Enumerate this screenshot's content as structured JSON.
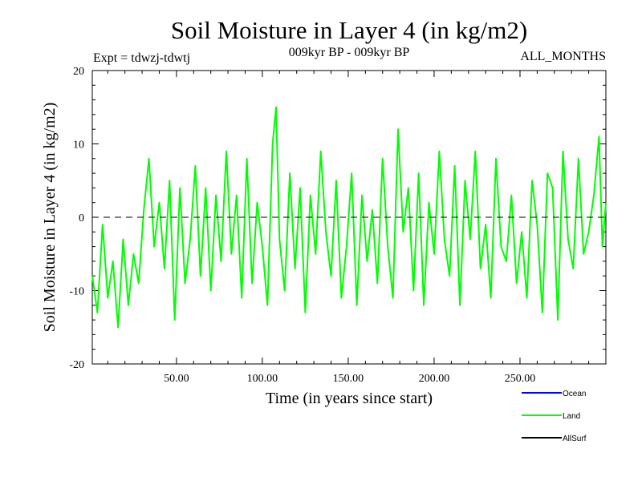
{
  "header": {
    "title": "Soil Moisture in Layer 4 (in kg/m2)",
    "expt": "Expt = tdwzj-tdwtj",
    "period": "009kyr BP - 009kyr BP",
    "months": "ALL_MONTHS"
  },
  "chart_data": {
    "type": "line",
    "title": "Soil Moisture in Layer 4 (in kg/m2)",
    "xlabel": "Time (in years since start)",
    "ylabel": "Soil Moisture in Layer 4 (in kg/m2)",
    "xlim": [
      1,
      300
    ],
    "ylim": [
      -20,
      20
    ],
    "xticks": [
      50,
      100,
      150,
      200,
      250
    ],
    "xtick_labels": [
      "50.00",
      "100.00",
      "150.00",
      "200.00",
      "250.00"
    ],
    "yticks": [
      -20,
      -10,
      0,
      10,
      20
    ],
    "ytick_labels": [
      "-20",
      "-10",
      "0",
      "10",
      "20"
    ],
    "reference_line": {
      "y": 0,
      "style": "dashed",
      "color": "#000000"
    },
    "legend": {
      "placement": "bottom-right",
      "entries": [
        {
          "name": "Ocean",
          "color": "#0000ff"
        },
        {
          "name": "Land",
          "color": "#00ff00"
        },
        {
          "name": "AllSurf",
          "color": "#000000"
        }
      ]
    },
    "series": [
      {
        "name": "Land",
        "color": "#00ff00",
        "x": [
          1,
          4,
          7,
          10,
          13,
          16,
          19,
          22,
          25,
          28,
          31,
          34,
          37,
          40,
          43,
          46,
          49,
          52,
          55,
          58,
          61,
          64,
          67,
          70,
          73,
          76,
          79,
          82,
          85,
          88,
          91,
          94,
          97,
          100,
          103,
          106,
          108,
          110,
          113,
          116,
          119,
          122,
          125,
          128,
          131,
          134,
          137,
          140,
          143,
          146,
          149,
          152,
          155,
          158,
          161,
          164,
          167,
          170,
          173,
          176,
          179,
          182,
          185,
          188,
          191,
          194,
          197,
          200,
          203,
          206,
          209,
          212,
          215,
          218,
          221,
          224,
          227,
          230,
          233,
          236,
          239,
          242,
          245,
          248,
          251,
          254,
          257,
          260,
          263,
          266,
          269,
          272,
          275,
          278,
          281,
          284,
          287,
          290,
          293,
          296,
          298,
          300
        ],
        "y": [
          -8,
          -13,
          -1,
          -11,
          -6,
          -15,
          -3,
          -12,
          -5,
          -9,
          1,
          8,
          -4,
          2,
          -7,
          5,
          -14,
          4,
          -9,
          -3,
          7,
          -8,
          4,
          -10,
          3,
          -6,
          9,
          -5,
          3,
          -11,
          8,
          -9,
          2,
          -4,
          -12,
          10,
          15,
          -3,
          -10,
          6,
          -7,
          4,
          -13,
          3,
          -5,
          9,
          -2,
          -8,
          5,
          -11,
          -4,
          6,
          -12,
          3,
          -6,
          1,
          -9,
          8,
          -4,
          -11,
          12,
          -2,
          4,
          -10,
          6,
          -12,
          2,
          -5,
          9,
          -3,
          -8,
          7,
          -12,
          5,
          -3,
          9,
          -7,
          -1,
          -11,
          8,
          -4,
          -6,
          3,
          -9,
          -2,
          -11,
          5,
          -1,
          -13,
          6,
          4,
          -14,
          9,
          -3,
          -7,
          8,
          -5,
          -2,
          3,
          11,
          -4,
          2
        ]
      }
    ]
  }
}
